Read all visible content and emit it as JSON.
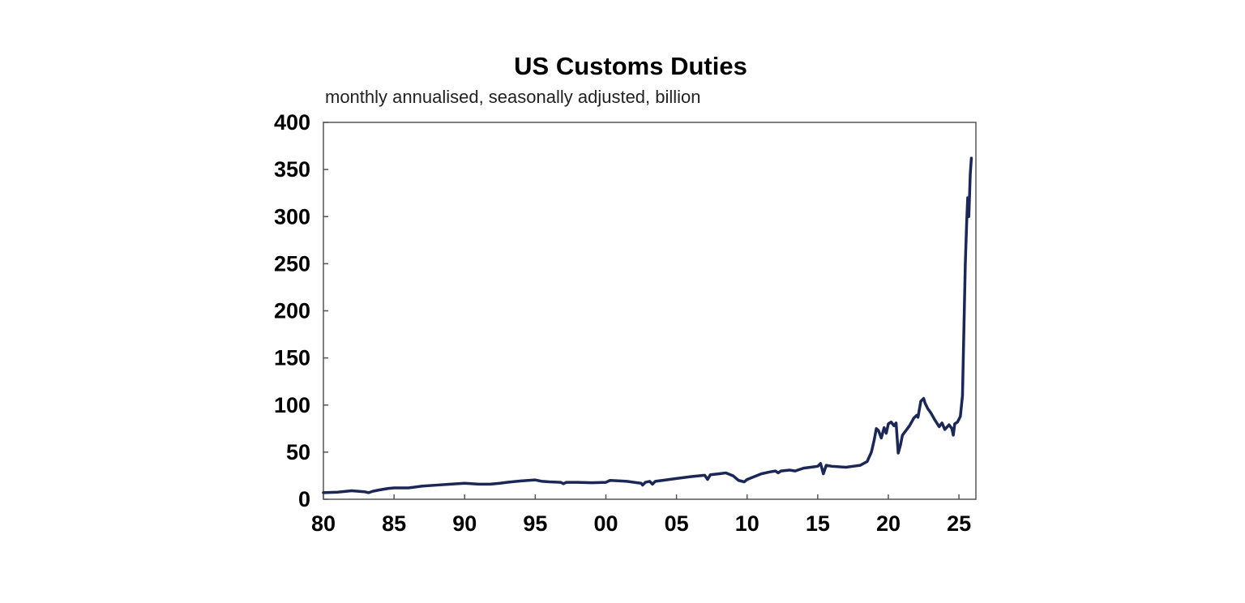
{
  "chart_data": {
    "type": "line",
    "title": "US Customs Duties",
    "subtitle": "monthly annualised, seasonally adjusted, billion",
    "xlabel": "",
    "ylabel": "",
    "xlim": [
      1980,
      2026.2
    ],
    "ylim": [
      0,
      400
    ],
    "y_ticks": [
      0,
      50,
      100,
      150,
      200,
      250,
      300,
      350,
      400
    ],
    "x_ticks": [
      {
        "value": 1980,
        "label": "80"
      },
      {
        "value": 1985,
        "label": "85"
      },
      {
        "value": 1990,
        "label": "90"
      },
      {
        "value": 1995,
        "label": "95"
      },
      {
        "value": 2000,
        "label": "00"
      },
      {
        "value": 2005,
        "label": "05"
      },
      {
        "value": 2010,
        "label": "10"
      },
      {
        "value": 2015,
        "label": "15"
      },
      {
        "value": 2020,
        "label": "20"
      },
      {
        "value": 2025,
        "label": "25"
      }
    ],
    "grid": false,
    "legend": "none",
    "series": [
      {
        "color": "#1a2757",
        "points": [
          [
            1980.0,
            7
          ],
          [
            1981.0,
            7.5
          ],
          [
            1982.0,
            9
          ],
          [
            1982.9,
            8
          ],
          [
            1983.2,
            7
          ],
          [
            1983.5,
            8.5
          ],
          [
            1984.0,
            10
          ],
          [
            1984.6,
            11.5
          ],
          [
            1985.0,
            12
          ],
          [
            1986.0,
            12
          ],
          [
            1987.0,
            14
          ],
          [
            1988.0,
            15
          ],
          [
            1989.0,
            16
          ],
          [
            1990.0,
            17
          ],
          [
            1991.0,
            16
          ],
          [
            1991.8,
            16
          ],
          [
            1992.5,
            17
          ],
          [
            1993.0,
            18
          ],
          [
            1994.0,
            19.5
          ],
          [
            1995.0,
            20.5
          ],
          [
            1995.5,
            19
          ],
          [
            1996.0,
            18.5
          ],
          [
            1996.8,
            18
          ],
          [
            1997.0,
            16.5
          ],
          [
            1997.2,
            18
          ],
          [
            1998.0,
            18
          ],
          [
            1999.0,
            17.5
          ],
          [
            2000.0,
            18
          ],
          [
            2000.3,
            20
          ],
          [
            2001.0,
            19.5
          ],
          [
            2001.5,
            19
          ],
          [
            2002.0,
            18
          ],
          [
            2002.5,
            17
          ],
          [
            2002.6,
            15
          ],
          [
            2002.8,
            18
          ],
          [
            2003.1,
            19
          ],
          [
            2003.3,
            16
          ],
          [
            2003.5,
            19
          ],
          [
            2004.0,
            20
          ],
          [
            2005.0,
            22
          ],
          [
            2006.0,
            24
          ],
          [
            2007.0,
            25.5
          ],
          [
            2007.2,
            21
          ],
          [
            2007.4,
            26
          ],
          [
            2008.0,
            27
          ],
          [
            2008.5,
            28
          ],
          [
            2009.0,
            25
          ],
          [
            2009.4,
            20
          ],
          [
            2009.8,
            18.5
          ],
          [
            2010.0,
            21
          ],
          [
            2011.0,
            27
          ],
          [
            2011.6,
            29
          ],
          [
            2012.0,
            30
          ],
          [
            2012.2,
            28
          ],
          [
            2012.4,
            30
          ],
          [
            2013.0,
            31
          ],
          [
            2013.4,
            30
          ],
          [
            2014.0,
            33
          ],
          [
            2014.5,
            34
          ],
          [
            2015.0,
            35
          ],
          [
            2015.2,
            38
          ],
          [
            2015.4,
            27
          ],
          [
            2015.6,
            36
          ],
          [
            2016.0,
            35
          ],
          [
            2017.0,
            34
          ],
          [
            2017.5,
            35
          ],
          [
            2018.0,
            36
          ],
          [
            2018.5,
            40
          ],
          [
            2018.8,
            50
          ],
          [
            2019.0,
            63
          ],
          [
            2019.15,
            75
          ],
          [
            2019.3,
            73
          ],
          [
            2019.5,
            65
          ],
          [
            2019.7,
            76
          ],
          [
            2019.85,
            70
          ],
          [
            2020.0,
            80
          ],
          [
            2020.2,
            82
          ],
          [
            2020.4,
            78
          ],
          [
            2020.55,
            81
          ],
          [
            2020.7,
            49
          ],
          [
            2020.85,
            57
          ],
          [
            2021.0,
            68
          ],
          [
            2021.2,
            72
          ],
          [
            2021.5,
            78
          ],
          [
            2021.8,
            86
          ],
          [
            2022.0,
            89
          ],
          [
            2022.1,
            87
          ],
          [
            2022.3,
            104
          ],
          [
            2022.5,
            107
          ],
          [
            2022.6,
            102
          ],
          [
            2022.8,
            96
          ],
          [
            2023.0,
            92
          ],
          [
            2023.3,
            84
          ],
          [
            2023.6,
            77
          ],
          [
            2023.8,
            81
          ],
          [
            2024.0,
            74
          ],
          [
            2024.3,
            79
          ],
          [
            2024.5,
            75
          ],
          [
            2024.6,
            68
          ],
          [
            2024.7,
            80
          ],
          [
            2024.9,
            82
          ],
          [
            2025.0,
            85
          ],
          [
            2025.1,
            88
          ],
          [
            2025.25,
            110
          ],
          [
            2025.35,
            180
          ],
          [
            2025.45,
            250
          ],
          [
            2025.55,
            295
          ],
          [
            2025.62,
            320
          ],
          [
            2025.7,
            300
          ],
          [
            2025.8,
            345
          ],
          [
            2025.88,
            362
          ]
        ]
      }
    ]
  }
}
